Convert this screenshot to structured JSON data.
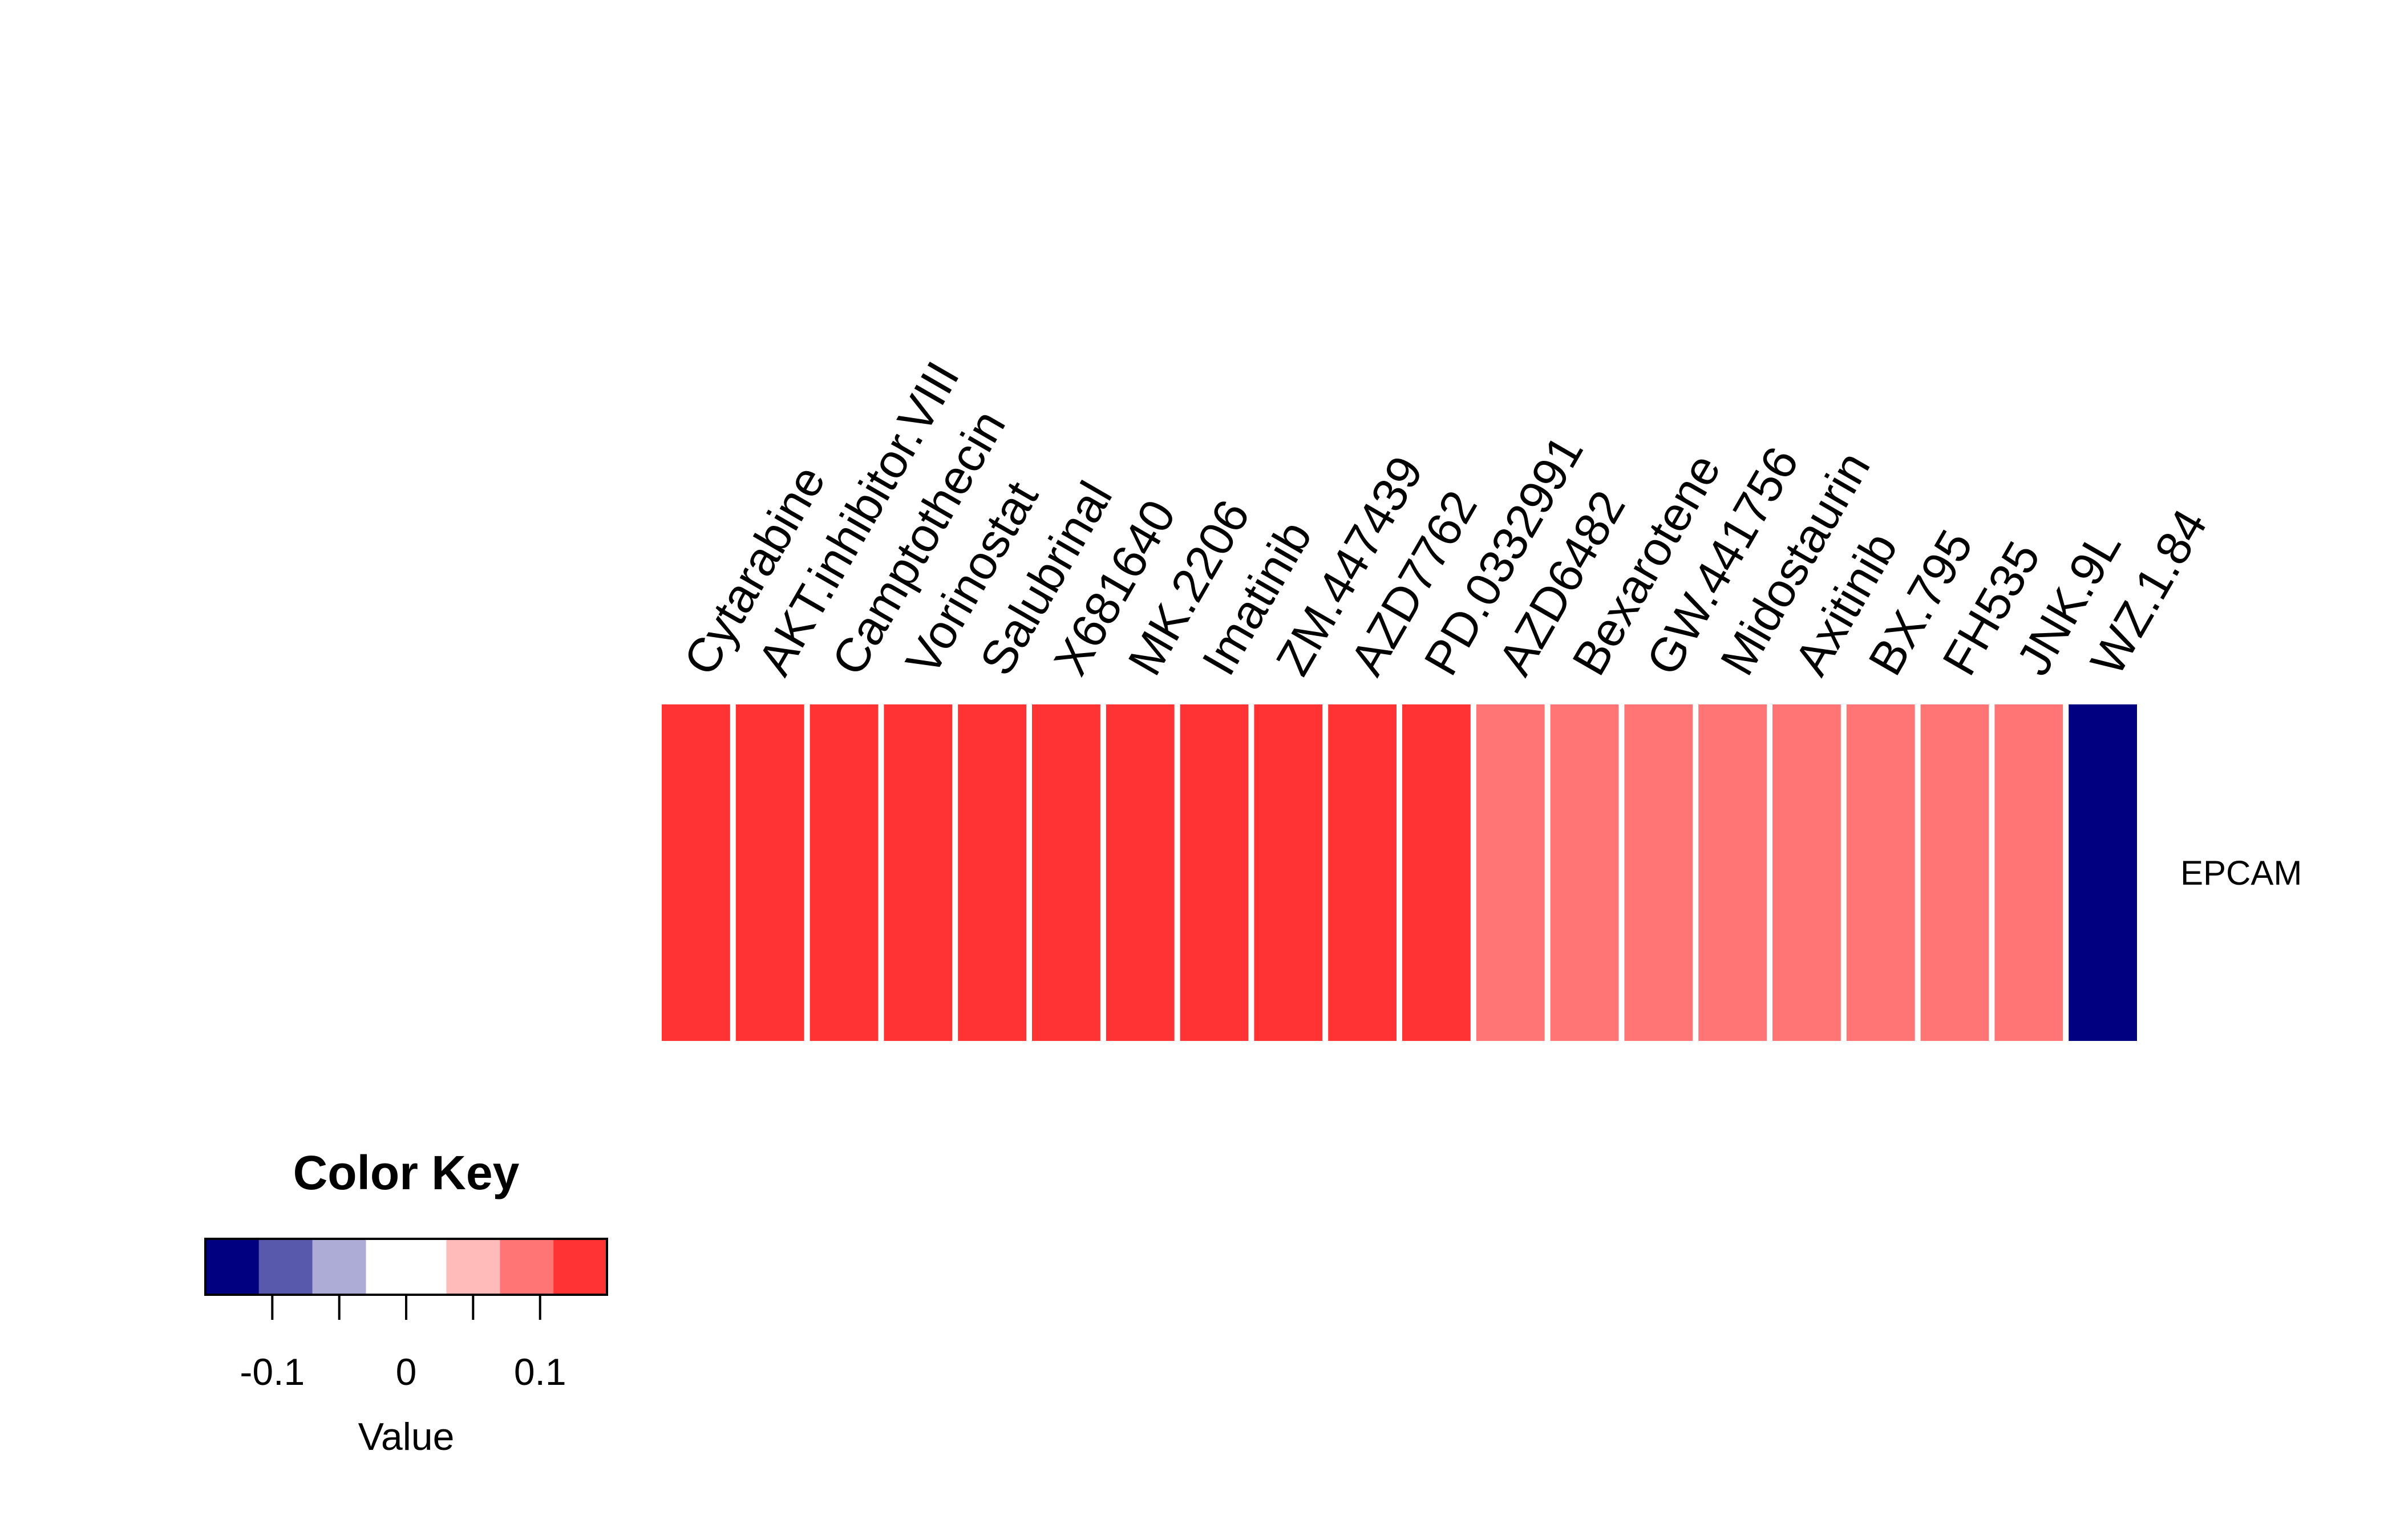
{
  "chart_data": {
    "type": "heatmap",
    "title": "",
    "columns": [
      "Cytarabine",
      "AKT.inhibitor.VIII",
      "Camptothecin",
      "Vorinostat",
      "Salubrinal",
      "X681640",
      "MK.2206",
      "Imatinib",
      "ZM.447439",
      "AZD7762",
      "PD.0332991",
      "AZD6482",
      "Bexarotene",
      "GW.441756",
      "Midostaurin",
      "Axitinib",
      "BX.795",
      "FH535",
      "JNK.9L",
      "WZ.1.84"
    ],
    "rows": [
      "EPCAM"
    ],
    "values": [
      [
        0.14,
        0.14,
        0.14,
        0.14,
        0.14,
        0.14,
        0.14,
        0.14,
        0.14,
        0.14,
        0.14,
        0.09,
        0.09,
        0.09,
        0.09,
        0.09,
        0.09,
        0.09,
        0.09,
        -0.14
      ]
    ],
    "color_key": {
      "title": "Color Key",
      "xlabel": "Value",
      "range": [
        -0.15,
        0.15
      ],
      "bins": [
        {
          "from": -0.15,
          "to": -0.11,
          "color": "#000080"
        },
        {
          "from": -0.11,
          "to": -0.07,
          "color": "#5858AC"
        },
        {
          "from": -0.07,
          "to": -0.03,
          "color": "#ACACD6"
        },
        {
          "from": -0.03,
          "to": 0.03,
          "color": "#FFFFFF"
        },
        {
          "from": 0.03,
          "to": 0.07,
          "color": "#FFBABA"
        },
        {
          "from": 0.07,
          "to": 0.11,
          "color": "#FF7575"
        },
        {
          "from": 0.11,
          "to": 0.15,
          "color": "#FF3333"
        }
      ],
      "tick_marks": [
        -0.1,
        -0.05,
        0,
        0.05,
        0.1
      ],
      "tick_labels": [
        {
          "value": -0.1,
          "label": "-0.1"
        },
        {
          "value": 0,
          "label": "0"
        },
        {
          "value": 0.1,
          "label": "0.1"
        }
      ]
    }
  }
}
